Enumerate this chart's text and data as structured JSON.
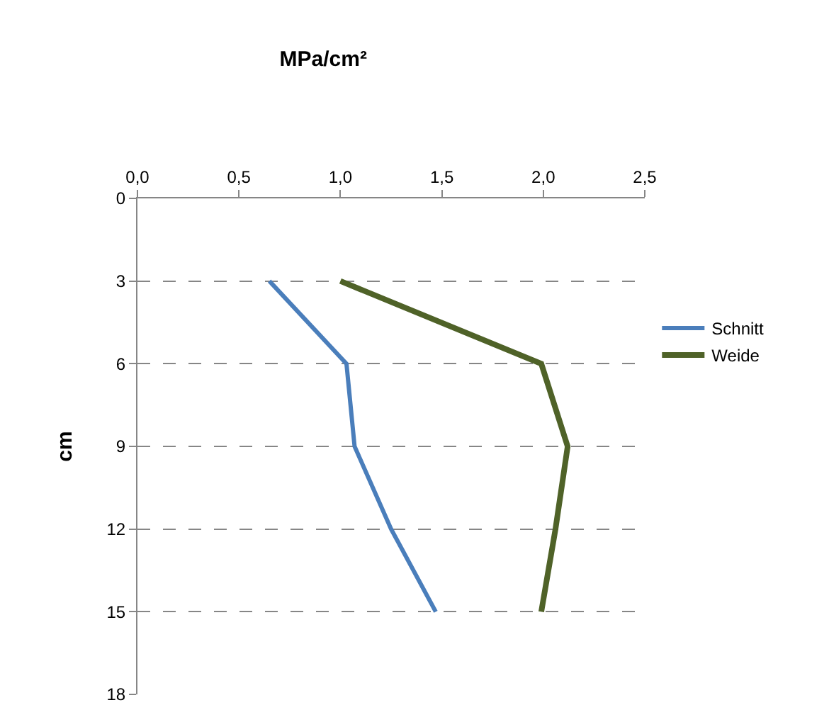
{
  "chart_data": {
    "type": "line",
    "title": "MPa/cm²",
    "ylabel": "cm",
    "xlim": [
      0,
      2.5
    ],
    "xticks": [
      {
        "value": 0,
        "label": "0,0"
      },
      {
        "value": 0.5,
        "label": "0,5"
      },
      {
        "value": 1,
        "label": "1,0"
      },
      {
        "value": 1.5,
        "label": "1,5"
      },
      {
        "value": 2,
        "label": "2,0"
      },
      {
        "value": 2.5,
        "label": "2,5"
      }
    ],
    "ylim": [
      18,
      0
    ],
    "yticks": [
      0,
      3,
      6,
      9,
      12,
      15,
      18
    ],
    "series": [
      {
        "name": "Schnitt",
        "color": "#4a7ebb",
        "x": [
          0.65,
          1.03,
          1.07,
          1.25,
          1.47
        ],
        "values": [
          3,
          6,
          9,
          12,
          15
        ]
      },
      {
        "name": "Weide",
        "color": "#4f6228",
        "x": [
          1.0,
          1.99,
          2.12,
          2.06,
          1.99
        ],
        "values": [
          3,
          6,
          9,
          12,
          15
        ]
      }
    ],
    "grid": "y",
    "legend": "right",
    "marker": "none",
    "line_style": "solid"
  }
}
